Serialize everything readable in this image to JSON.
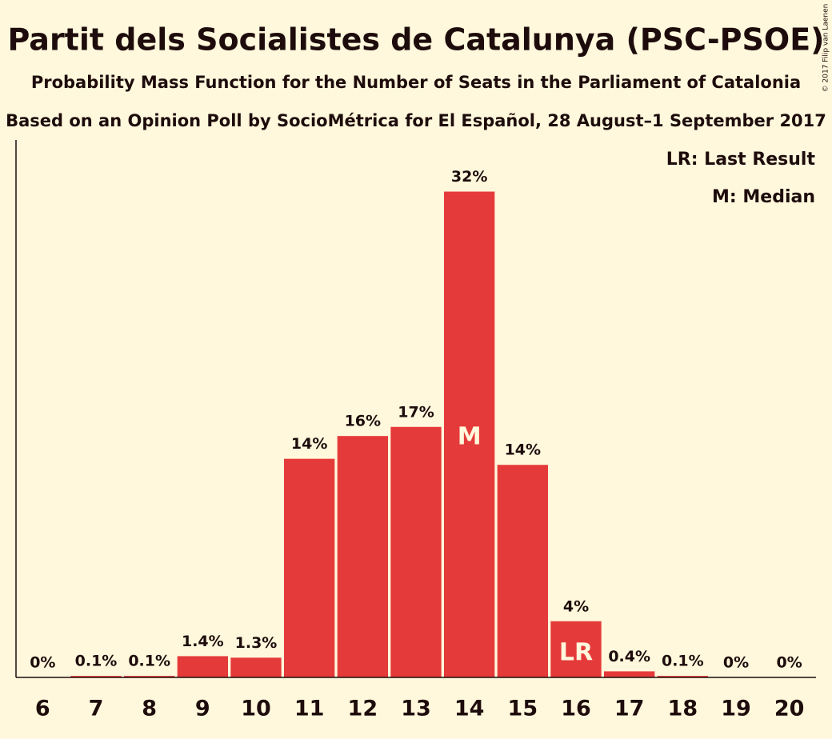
{
  "chart_data": {
    "type": "bar",
    "title": "Partit dels Socialistes de Catalunya (PSC-PSOE)",
    "subtitle": "Probability Mass Function for the Number of Seats in the Parliament of Catalonia",
    "subtitle2": "Based on an Opinion Poll by SocioMétrica for El Español, 28 August–1 September 2017",
    "x": [
      6,
      7,
      8,
      9,
      10,
      11,
      12,
      13,
      14,
      15,
      16,
      17,
      18,
      19,
      20
    ],
    "values": [
      0,
      0.1,
      0.1,
      1.4,
      1.3,
      14.4,
      15.9,
      16.5,
      32,
      14,
      3.7,
      0.4,
      0.1,
      0,
      0
    ],
    "value_labels": [
      "0%",
      "0.1%",
      "0.1%",
      "1.4%",
      "1.3%",
      "14%",
      "16%",
      "17%",
      "32%",
      "14%",
      "4%",
      "0.4%",
      "0.1%",
      "0%",
      "0%"
    ],
    "color": "#e53a3a",
    "ylim": [
      0,
      35.4
    ],
    "median": {
      "x": 14,
      "label": "M"
    },
    "last_result": {
      "x": 16,
      "label": "LR"
    },
    "legend": [
      "LR: Last Result",
      "M: Median"
    ],
    "copyright": "© 2017 Filip van Laenen"
  }
}
